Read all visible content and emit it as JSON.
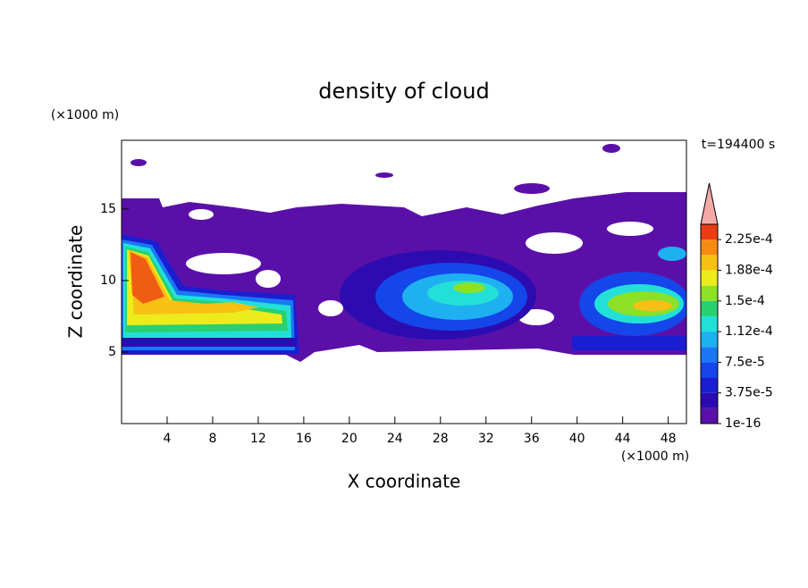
{
  "chart_data": {
    "type": "contour",
    "title": "density of cloud",
    "x_label": "X coordinate",
    "y_label": "Z coordinate",
    "x_unit": "(×1000 m)",
    "y_unit": "(×1000 m)",
    "annotation": "t=194400 s",
    "xlim": [
      0,
      49.6
    ],
    "ylim": [
      0,
      19.8
    ],
    "xticks": [
      4,
      8,
      12,
      16,
      20,
      24,
      28,
      32,
      36,
      40,
      44,
      48
    ],
    "yticks": [
      5,
      10,
      15
    ],
    "clim": [
      1e-16,
      0.00024375
    ],
    "cticks": [
      {
        "value": 1e-16,
        "label": "1e-16"
      },
      {
        "value": 3.75e-05,
        "label": "3.75e-5"
      },
      {
        "value": 7.5e-05,
        "label": "7.5e-5"
      },
      {
        "value": 0.0001125,
        "label": "1.12e-4"
      },
      {
        "value": 0.00015,
        "label": "1.5e-4"
      },
      {
        "value": 0.0001875,
        "label": "1.88e-4"
      },
      {
        "value": 0.000225,
        "label": "2.25e-4"
      }
    ],
    "colors": [
      "#5a10a8",
      "#2c0cb0",
      "#1a1ed0",
      "#1446ea",
      "#1a78f4",
      "#1eb0f0",
      "#22e0d8",
      "#2ad070",
      "#8ce028",
      "#ecec1c",
      "#f8c014",
      "#f88a14",
      "#ec3c14"
    ],
    "extend_color": "#f4a8a8"
  }
}
